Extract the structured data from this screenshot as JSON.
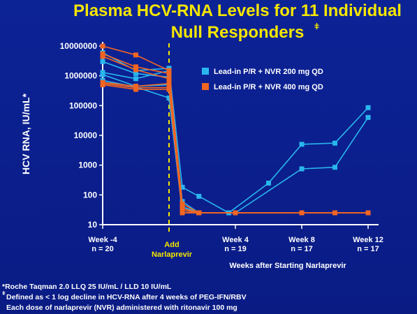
{
  "title_line1": "Plasma HCV-RNA Levels for 11 Individual",
  "title_line2": "Null Responders",
  "title_sup": "ǂ",
  "colors": {
    "background": "#0b1f8c",
    "title": "#f5e600",
    "series_200": "#29b6ee",
    "series_400": "#f26522",
    "add_line": "#f5e600"
  },
  "x_ticks": [
    {
      "x": -4,
      "label": "Week -4",
      "n": "n = 20"
    },
    {
      "x": 4,
      "label": "Week 4",
      "n": "n = 19"
    },
    {
      "x": 8,
      "label": "Week 8",
      "n": "n = 17"
    },
    {
      "x": 12,
      "label": "Week 12",
      "n": "n = 17"
    }
  ],
  "add_label_1": "Add",
  "add_label_2": "Narlaprevir",
  "xlabel": "Weeks after Starting Narlaprevir",
  "footnotes": {
    "line1": "*Roche Taqman 2.0 LLQ 25 IU/mL / LLD 10 IU/mL",
    "line2_sup": "ǂ",
    "line2": "Defined as < 1 log decline in HCV-RNA after 4 weeks of PEG-IFN/RBV",
    "line3": "Each dose of narlaprevir (NVR) administered with ritonavir 100 mg"
  },
  "chart_data": {
    "type": "line",
    "title": "Plasma HCV-RNA Levels for 11 Individual Null Responders",
    "ylabel": "HCV RNA, IU/mL*",
    "xlabel": "Weeks after Starting Narlaprevir",
    "y_scale": "log",
    "ylim": [
      10,
      10000000
    ],
    "y_ticks": [
      10,
      100,
      1000,
      10000,
      100000,
      1000000,
      10000000
    ],
    "y_tick_labels": [
      "10",
      "100",
      "1000",
      "10000",
      "100000",
      "1000000",
      "10000000"
    ],
    "xlim": [
      -4,
      12
    ],
    "add_narlaprevir_week": 0,
    "legend": [
      "Lead-in P/R + NVR 200 mg QD",
      "Lead-in P/R + NVR 400 mg QD"
    ],
    "legend_placement": "top-right",
    "series": [
      {
        "name": "Lead-in P/R + NVR 200 mg QD",
        "group": 200,
        "points": [
          [
            -4,
            6000000
          ],
          [
            -2,
            1500000
          ],
          [
            0,
            1800000
          ],
          [
            0.8,
            180
          ],
          [
            1.8,
            90
          ],
          [
            3.6,
            25
          ],
          [
            6,
            250
          ],
          [
            8,
            5000
          ],
          [
            10,
            5500
          ],
          [
            12,
            85000
          ]
        ]
      },
      {
        "name": "Lead-in P/R + NVR 200 mg QD",
        "group": 200,
        "points": [
          [
            -4,
            3000000
          ],
          [
            -2,
            1200000
          ],
          [
            0,
            900000
          ],
          [
            0.8,
            60
          ],
          [
            1.8,
            25
          ],
          [
            4,
            25
          ],
          [
            8,
            750
          ],
          [
            10,
            850
          ],
          [
            12,
            40000
          ]
        ]
      },
      {
        "name": "Lead-in P/R + NVR 200 mg QD",
        "group": 200,
        "points": [
          [
            -4,
            1300000
          ],
          [
            -2,
            800000
          ],
          [
            0,
            1500000
          ],
          [
            0.8,
            40
          ],
          [
            1.8,
            25
          ],
          [
            4,
            25
          ],
          [
            8,
            25
          ],
          [
            10,
            25
          ],
          [
            12,
            25
          ]
        ]
      },
      {
        "name": "Lead-in P/R + NVR 200 mg QD",
        "group": 200,
        "points": [
          [
            -4,
            1100000
          ],
          [
            -2,
            450000
          ],
          [
            0,
            500000
          ],
          [
            0.8,
            25
          ],
          [
            1.8,
            25
          ],
          [
            4,
            25
          ],
          [
            8,
            25
          ],
          [
            12,
            25
          ]
        ]
      },
      {
        "name": "Lead-in P/R + NVR 200 mg QD",
        "group": 200,
        "points": [
          [
            -4,
            700000
          ],
          [
            -2,
            420000
          ],
          [
            0,
            180000
          ],
          [
            0.8,
            25
          ],
          [
            1.8,
            25
          ],
          [
            4,
            25
          ],
          [
            8,
            25
          ],
          [
            12,
            25
          ]
        ]
      },
      {
        "name": "Lead-in P/R + NVR 400 mg QD",
        "group": 400,
        "points": [
          [
            -4,
            10000000
          ],
          [
            -2,
            5000000
          ],
          [
            0,
            1500000
          ],
          [
            0.8,
            50
          ],
          [
            1.8,
            25
          ],
          [
            4,
            25
          ],
          [
            8,
            25
          ],
          [
            10,
            25
          ],
          [
            12,
            25
          ]
        ]
      },
      {
        "name": "Lead-in P/R + NVR 400 mg QD",
        "group": 400,
        "points": [
          [
            -4,
            5500000
          ],
          [
            -2,
            2000000
          ],
          [
            0,
            1200000
          ],
          [
            0.8,
            35
          ],
          [
            1.8,
            25
          ],
          [
            4,
            25
          ],
          [
            8,
            25
          ],
          [
            12,
            25
          ]
        ]
      },
      {
        "name": "Lead-in P/R + NVR 400 mg QD",
        "group": 400,
        "points": [
          [
            -4,
            4500000
          ],
          [
            -2,
            1600000
          ],
          [
            0,
            800000
          ],
          [
            0.8,
            30
          ],
          [
            1.8,
            25
          ],
          [
            4,
            25
          ],
          [
            8,
            25
          ],
          [
            12,
            25
          ]
        ]
      },
      {
        "name": "Lead-in P/R + NVR 400 mg QD",
        "group": 400,
        "points": [
          [
            -4,
            600000
          ],
          [
            -2,
            450000
          ],
          [
            0,
            550000
          ],
          [
            0.8,
            25
          ],
          [
            1.8,
            25
          ],
          [
            4,
            25
          ],
          [
            8,
            25
          ],
          [
            12,
            25
          ]
        ]
      },
      {
        "name": "Lead-in P/R + NVR 400 mg QD",
        "group": 400,
        "points": [
          [
            -4,
            550000
          ],
          [
            -2,
            400000
          ],
          [
            0,
            400000
          ],
          [
            0.8,
            25
          ],
          [
            1.8,
            25
          ],
          [
            4,
            25
          ],
          [
            8,
            25
          ],
          [
            12,
            25
          ]
        ]
      },
      {
        "name": "Lead-in P/R + NVR 400 mg QD",
        "group": 400,
        "points": [
          [
            -4,
            500000
          ],
          [
            -2,
            350000
          ],
          [
            0,
            350000
          ],
          [
            0.8,
            25
          ],
          [
            1.8,
            25
          ],
          [
            4,
            25
          ],
          [
            8,
            25
          ],
          [
            12,
            25
          ]
        ]
      }
    ]
  }
}
